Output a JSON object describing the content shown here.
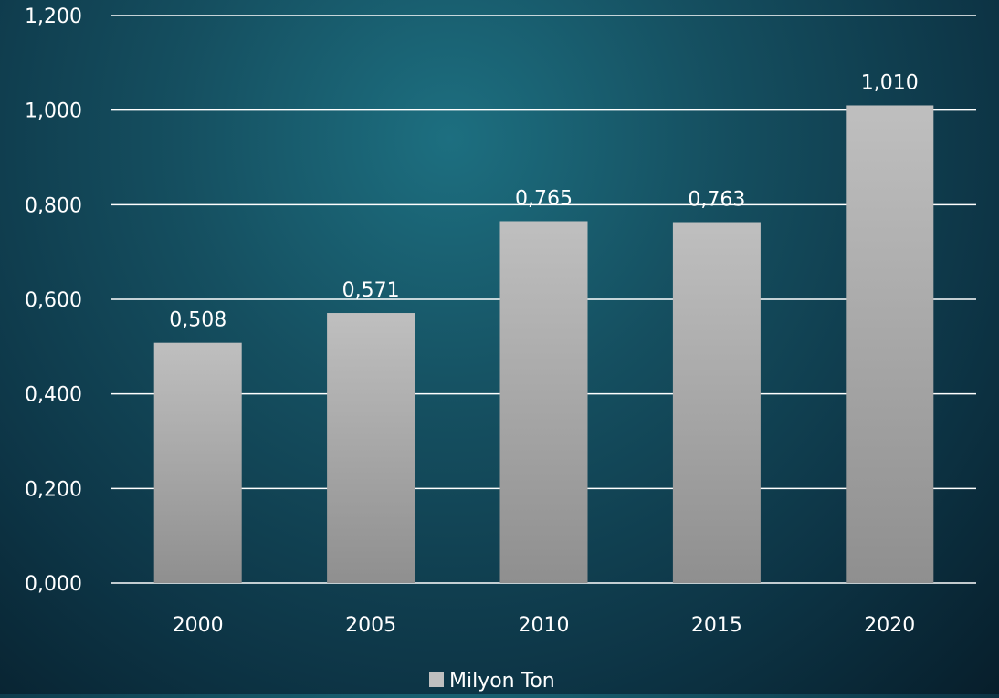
{
  "chart_data": {
    "type": "bar",
    "categories": [
      "2000",
      "2005",
      "2010",
      "2015",
      "2020"
    ],
    "series": [
      {
        "name": "Milyon Ton",
        "values": [
          0.508,
          0.571,
          0.765,
          0.763,
          1.01
        ],
        "value_labels": [
          "0,508",
          "0,571",
          "0,765",
          "0,763",
          "1,010"
        ]
      }
    ],
    "ylim": [
      0,
      1.2
    ],
    "yticks": [
      0,
      0.2,
      0.4,
      0.6,
      0.8,
      1.0,
      1.2
    ],
    "ytick_labels": [
      "0,000",
      "0,200",
      "0,400",
      "0,600",
      "0,800",
      "1,000",
      "1,200"
    ],
    "grid": true,
    "legend_position": "bottom-center",
    "colors": {
      "bar_top": "#bfbfbf",
      "bar_bottom": "#8f8f8f",
      "grid": "#ffffff",
      "text": "#ffffff",
      "background": "#123f50"
    }
  }
}
